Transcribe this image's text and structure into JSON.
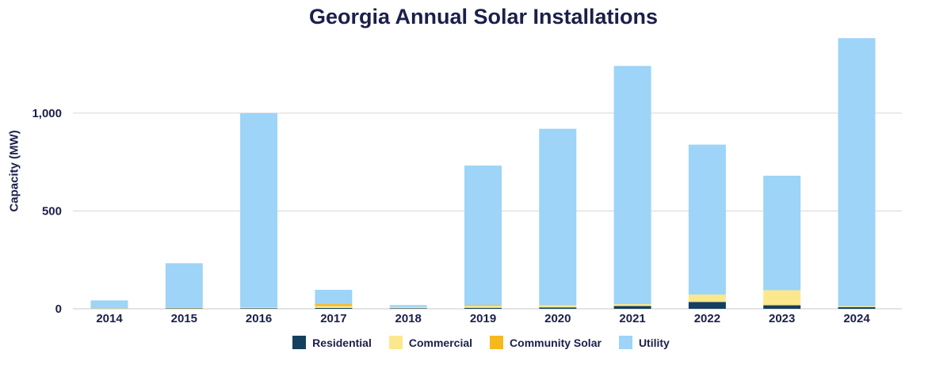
{
  "chart_data": {
    "type": "bar",
    "stacked": true,
    "title": "Georgia Annual Solar Installations",
    "xlabel": "",
    "ylabel": "Capacity (MW)",
    "ylim": [
      0,
      1400
    ],
    "yticks": [
      0,
      500,
      1000
    ],
    "ytick_labels": [
      "0",
      "500",
      "1,000"
    ],
    "grid": true,
    "legend_position": "bottom",
    "categories": [
      "2014",
      "2015",
      "2016",
      "2017",
      "2018",
      "2019",
      "2020",
      "2021",
      "2022",
      "2023",
      "2024"
    ],
    "series": [
      {
        "name": "Residential",
        "color": "#143f5e",
        "values": [
          1,
          2,
          3,
          4,
          3,
          5,
          7,
          14,
          35,
          18,
          8
        ]
      },
      {
        "name": "Commercial",
        "color": "#fbe88d",
        "values": [
          2,
          3,
          5,
          10,
          6,
          10,
          10,
          10,
          38,
          77,
          5
        ]
      },
      {
        "name": "Community Solar",
        "color": "#f6b91c",
        "values": [
          0,
          0,
          0,
          10,
          0,
          5,
          2,
          0,
          0,
          0,
          0
        ]
      },
      {
        "name": "Utility",
        "color": "#9dd4f8",
        "values": [
          40,
          228,
          992,
          73,
          10,
          712,
          901,
          1217,
          766,
          585,
          1370
        ]
      }
    ]
  }
}
